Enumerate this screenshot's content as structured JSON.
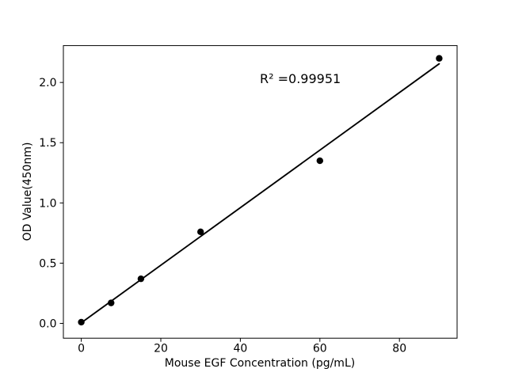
{
  "figure": {
    "background_color": "#ffffff"
  },
  "chart_data": {
    "type": "scatter",
    "title": "",
    "xlabel": "Mouse EGF Concentration (pg/mL)",
    "ylabel": "OD Value(450nm)",
    "annotation": "R² =0.99951",
    "x": [
      0,
      7.5,
      15,
      30,
      60,
      90
    ],
    "y": [
      0.01,
      0.17,
      0.37,
      0.76,
      1.35,
      2.2
    ],
    "trendline": {
      "x": [
        0,
        90
      ],
      "y": [
        0.005,
        2.155
      ]
    },
    "xticks": [
      0,
      20,
      40,
      60,
      80
    ],
    "yticks": [
      "0.0",
      "0.5",
      "1.0",
      "1.5",
      "2.0"
    ],
    "xlim": [
      -4.5,
      94.5
    ],
    "ylim": [
      -0.123,
      2.306
    ],
    "grid": false,
    "legend": "none",
    "marker_color": "#000000",
    "line_color": "#000000",
    "axis_color": "#000000",
    "background_color": "#ffffff"
  }
}
